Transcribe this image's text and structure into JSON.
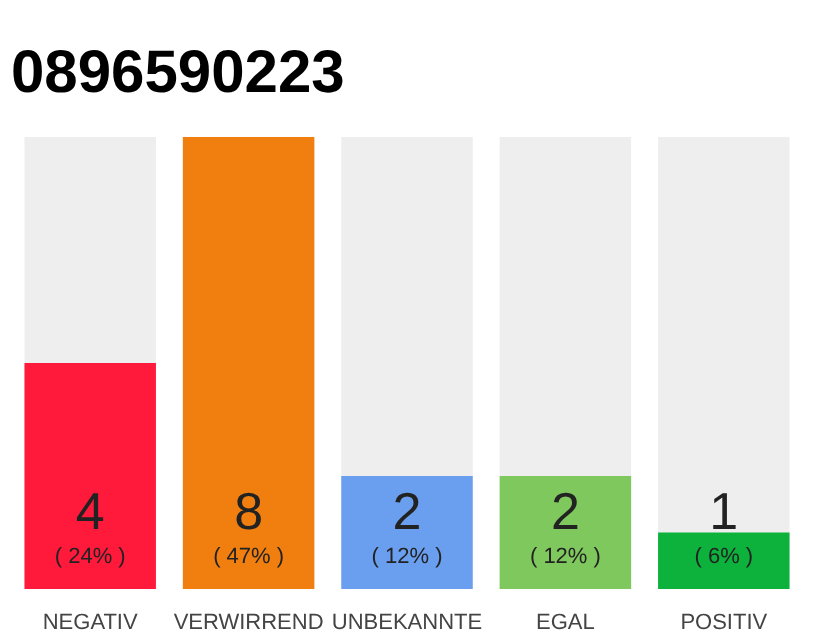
{
  "chart_data": {
    "type": "bar",
    "title": "0896590223",
    "categories": [
      "NEGATIV",
      "VERWIRREND",
      "UNBEKANNTE",
      "EGAL",
      "POSITIV"
    ],
    "values": [
      4,
      8,
      2,
      2,
      1
    ],
    "colors": [
      "#ff1a3c",
      "#f07f10",
      "#6a9fef",
      "#7ec85e",
      "#0cb23c"
    ],
    "tick_labels": "x",
    "value_labels": [
      "4\n( 24% )",
      "8\n( 47% )",
      "2\n( 12% )",
      "2\n( 12% )",
      "1\n( 6% )"
    ]
  }
}
